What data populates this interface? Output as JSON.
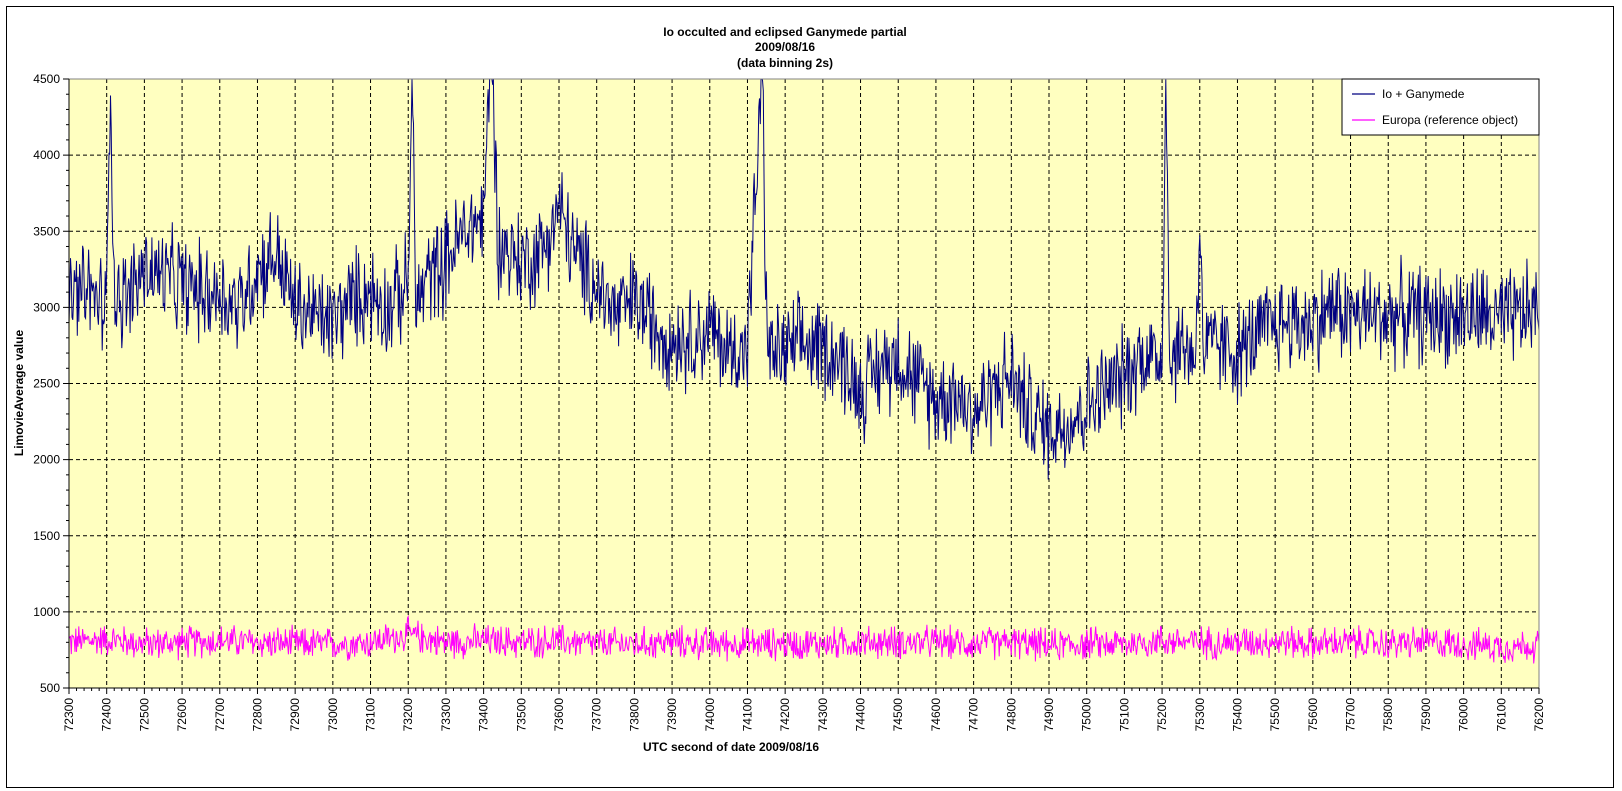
{
  "chart_data": {
    "type": "line",
    "title": [
      "Io occulted and eclipsed Ganymede partial",
      "2009/08/16",
      "(data binning 2s)"
    ],
    "xlabel": "UTC second of date 2009/08/16",
    "ylabel": "LimovieAverage value",
    "xlim": [
      72300,
      76200
    ],
    "ylim": [
      500,
      4500
    ],
    "x_ticks": [
      72300,
      72400,
      72500,
      72600,
      72700,
      72800,
      72900,
      73000,
      73100,
      73200,
      73300,
      73400,
      73500,
      73600,
      73700,
      73800,
      73900,
      74000,
      74100,
      74200,
      74300,
      74400,
      74500,
      74600,
      74700,
      74800,
      74900,
      75000,
      75100,
      75200,
      75300,
      75400,
      75500,
      75600,
      75700,
      75800,
      75900,
      76000,
      76100,
      76200
    ],
    "y_ticks": [
      500,
      1000,
      1500,
      2000,
      2500,
      3000,
      3500,
      4000,
      4500
    ],
    "grid": true,
    "legend_position": "top-right",
    "plot_background": "#ffffc0",
    "series": [
      {
        "name": "Io + Ganymede",
        "color": "#000080",
        "x_step": 50,
        "x": [
          72300,
          72350,
          72400,
          72410,
          72420,
          72450,
          72500,
          72550,
          72600,
          72650,
          72700,
          72750,
          72800,
          72850,
          72900,
          72950,
          73000,
          73050,
          73100,
          73150,
          73200,
          73210,
          73220,
          73250,
          73300,
          73350,
          73400,
          73420,
          73440,
          73450,
          73500,
          73550,
          73600,
          73650,
          73700,
          73750,
          73800,
          73850,
          73900,
          73950,
          74000,
          74050,
          74100,
          74140,
          74150,
          74160,
          74200,
          74250,
          74300,
          74350,
          74400,
          74450,
          74500,
          74550,
          74600,
          74650,
          74700,
          74750,
          74800,
          74850,
          74900,
          74950,
          75000,
          75050,
          75100,
          75150,
          75200,
          75210,
          75220,
          75250,
          75290,
          75300,
          75310,
          75350,
          75400,
          75450,
          75500,
          75550,
          75600,
          75650,
          75700,
          75750,
          75800,
          75850,
          75900,
          75950,
          76000,
          76050,
          76100,
          76150,
          76200
        ],
        "values": [
          3050,
          3100,
          3000,
          4600,
          3100,
          3050,
          3250,
          3200,
          3150,
          3100,
          3100,
          3000,
          3250,
          3350,
          3000,
          2950,
          2900,
          3050,
          3100,
          3000,
          3150,
          4600,
          3000,
          3200,
          3300,
          3500,
          3600,
          4700,
          3400,
          3400,
          3300,
          3350,
          3650,
          3300,
          3150,
          2950,
          3050,
          2900,
          2800,
          2800,
          2850,
          2700,
          2750,
          4600,
          2900,
          2700,
          2700,
          2750,
          2750,
          2650,
          2450,
          2600,
          2700,
          2500,
          2400,
          2450,
          2300,
          2450,
          2550,
          2300,
          2200,
          2250,
          2350,
          2450,
          2550,
          2700,
          2650,
          4600,
          2650,
          2750,
          2700,
          3600,
          2700,
          2750,
          2700,
          2800,
          2900,
          2900,
          2900,
          3000,
          2950,
          2950,
          2950,
          2950,
          2950,
          2950,
          2950,
          2950,
          2900,
          2950,
          3000
        ],
        "noise_amplitude_approx": 400
      },
      {
        "name": "Europa (reference object)",
        "color": "#ff00ff",
        "x_step": 100,
        "x": [
          72300,
          72400,
          72500,
          72600,
          72700,
          72800,
          72900,
          73000,
          73100,
          73200,
          73300,
          73400,
          73500,
          73600,
          73700,
          73800,
          73900,
          74000,
          74100,
          74200,
          74300,
          74400,
          74500,
          74600,
          74700,
          74800,
          74900,
          75000,
          75100,
          75200,
          75300,
          75400,
          75500,
          75600,
          75700,
          75800,
          75900,
          76000,
          76100,
          76200
        ],
        "values": [
          800,
          820,
          790,
          800,
          810,
          800,
          790,
          790,
          800,
          850,
          800,
          810,
          800,
          810,
          790,
          790,
          800,
          790,
          790,
          790,
          790,
          800,
          800,
          800,
          790,
          800,
          780,
          790,
          790,
          810,
          800,
          800,
          810,
          790,
          800,
          790,
          800,
          790,
          770,
          780
        ],
        "noise_amplitude_approx": 130
      }
    ]
  }
}
